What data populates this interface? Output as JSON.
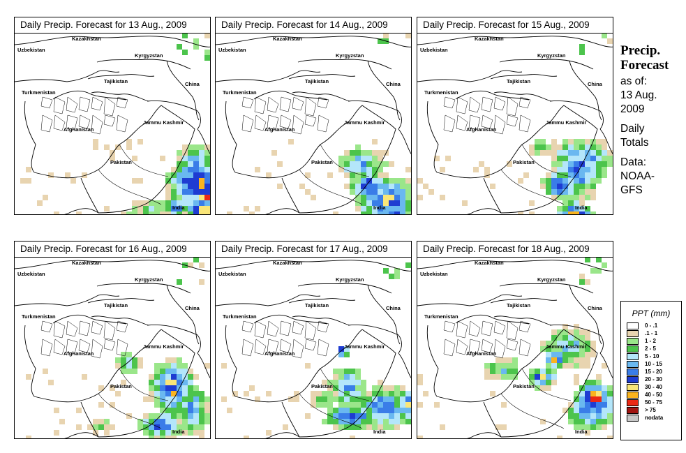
{
  "panels": [
    {
      "title": "Daily Precip. Forecast for  13 Aug., 2009",
      "scenario": 0
    },
    {
      "title": "Daily Precip. Forecast for  14 Aug., 2009",
      "scenario": 1
    },
    {
      "title": "Daily Precip. Forecast for  15 Aug., 2009",
      "scenario": 2
    },
    {
      "title": "Daily Precip. Forecast for  16 Aug., 2009",
      "scenario": 3
    },
    {
      "title": "Daily Precip. Forecast for  17 Aug., 2009",
      "scenario": 4
    },
    {
      "title": "Daily Precip. Forecast for  18 Aug., 2009",
      "scenario": 5
    }
  ],
  "map_labels": {
    "kazakhstan": "Kazakhstan",
    "uzbekistan": "Uzbekistan",
    "kyrgyzstan": "Kyrgyzstan",
    "tajikistan": "Tajikistan",
    "china": "China",
    "turkmenistan": "Turkmenistan",
    "jammu_kashmir": "Jammu Kashmir",
    "afghanistan": "Afghanistan",
    "pakistan": "Pakistan",
    "india": "India"
  },
  "side": {
    "title_line1": "Precip.",
    "title_line2": "Forecast",
    "asof": "as of:",
    "date_line1": "13 Aug.",
    "date_line2": "2009",
    "totals_line1": "Daily",
    "totals_line2": "Totals",
    "data_line1": "Data:",
    "data_line2": "NOAA-",
    "data_line3": "GFS"
  },
  "legend": {
    "title": "PPT (mm)",
    "items": [
      {
        "label": "0 - .1",
        "color": "#ffffff"
      },
      {
        "label": ".1 - 1",
        "color": "#e8d4b0"
      },
      {
        "label": "1 - 2",
        "color": "#9ae68a"
      },
      {
        "label": "2 - 5",
        "color": "#4cc44c"
      },
      {
        "label": "5 - 10",
        "color": "#b4e6fa"
      },
      {
        "label": "10 - 15",
        "color": "#6ab8f0"
      },
      {
        "label": "15 - 20",
        "color": "#3a7de8"
      },
      {
        "label": "20 - 30",
        "color": "#1e3cd2"
      },
      {
        "label": "30 - 40",
        "color": "#fae678"
      },
      {
        "label": "40 - 50",
        "color": "#fab41e"
      },
      {
        "label": "50 - 75",
        "color": "#eb2814"
      },
      {
        "label": "> 75",
        "color": "#a01410"
      },
      {
        "label": "nodata",
        "color": "#c8c8c8"
      }
    ]
  }
}
